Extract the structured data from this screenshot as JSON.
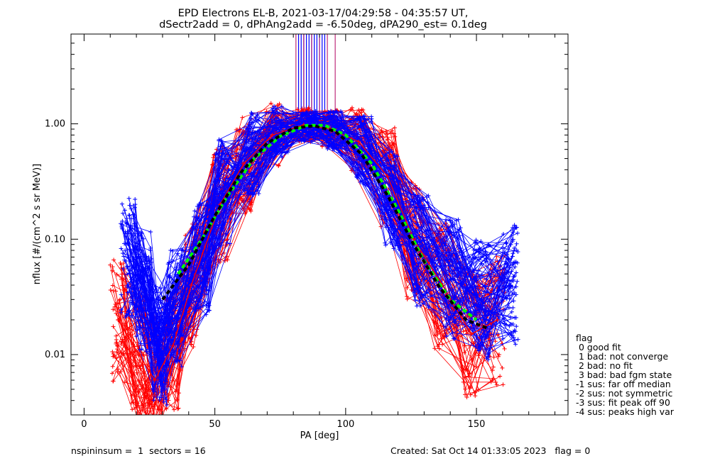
{
  "chart_data": {
    "type": "line",
    "title": "EPD Electrons EL-B, 2021-03-17/04:29:58 - 04:35:57 UT,",
    "subtitle": "dSectr2add = 0, dPhAng2add = -6.50deg, dPA290_est=   0.1deg",
    "xlabel": "PA [deg]",
    "ylabel": "nflux [#/(cm^2 s sr MeV)]",
    "xlim": [
      -5,
      185
    ],
    "ylim": [
      0.003,
      6.0
    ],
    "yscale": "log",
    "x_ticks": [
      0,
      50,
      100,
      150
    ],
    "x_tick_labels": [
      "0",
      "50",
      "100",
      "150"
    ],
    "y_ticks": [
      0.01,
      0.1,
      1.0
    ],
    "y_tick_labels": [
      "0.01",
      "0.10",
      "1.00"
    ],
    "grid": false,
    "series": [
      {
        "name": "",
        "color": "#0000ff",
        "x": [
          17,
          23,
          29,
          35,
          45,
          53,
          64,
          75,
          86,
          96,
          107,
          118,
          129,
          141,
          152,
          163
        ],
        "y": [
          0.07,
          0.035,
          0.012,
          0.025,
          0.07,
          0.25,
          0.55,
          0.85,
          0.95,
          0.88,
          0.6,
          0.22,
          0.08,
          0.045,
          0.03,
          0.04
        ]
      },
      {
        "name": "",
        "color": "#ff0000",
        "x": [
          13,
          21,
          27,
          34,
          41,
          52,
          61,
          72,
          84,
          94,
          105,
          116,
          126,
          137,
          148,
          158
        ],
        "y": [
          0.02,
          0.01,
          0.006,
          0.012,
          0.04,
          0.2,
          0.45,
          0.8,
          0.98,
          0.9,
          0.7,
          0.35,
          0.1,
          0.04,
          0.015,
          0.02
        ]
      },
      {
        "name": "",
        "color": "#00ff00",
        "dash": true,
        "x": [
          36,
          45,
          55,
          65,
          75,
          85,
          92,
          100,
          110,
          120,
          130,
          140,
          150
        ],
        "y": [
          0.05,
          0.1,
          0.24,
          0.5,
          0.78,
          0.97,
          0.97,
          0.8,
          0.45,
          0.18,
          0.065,
          0.03,
          0.02
        ]
      },
      {
        "name": "",
        "color": "#000000",
        "dash": true,
        "x": [
          30,
          40,
          50,
          60,
          70,
          80,
          88,
          96,
          106,
          116,
          126,
          136,
          146,
          154
        ],
        "y": [
          0.03,
          0.06,
          0.16,
          0.38,
          0.68,
          0.92,
          0.96,
          0.86,
          0.55,
          0.24,
          0.09,
          0.038,
          0.02,
          0.017
        ]
      }
    ],
    "vertical_lines": {
      "blue_x": [
        82,
        83,
        84,
        85,
        86,
        87,
        88,
        89,
        90,
        91,
        92
      ],
      "red_x": [
        81,
        84,
        87,
        90,
        93,
        96
      ],
      "y_from": 1.2
    },
    "legend": {
      "placement": "right",
      "title": "flag",
      "entries": [
        " 0 good fit",
        " 1 bad: not converge",
        " 2 bad: no fit",
        " 3 bad: bad fgm state",
        "-1 sus: far off median",
        "-2 sus: not symmetric",
        "-3 sus: fit peak off 90",
        "-4 sus: peaks high var"
      ]
    }
  },
  "footer": {
    "left": "nspininsum =  1  sectors = 16",
    "right": "Created: Sat Oct 14 01:33:05 2023   flag = 0"
  }
}
